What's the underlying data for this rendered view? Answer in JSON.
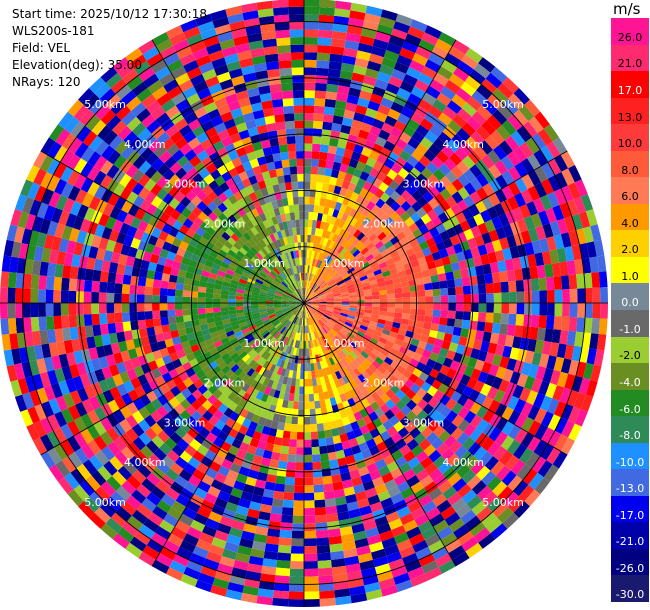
{
  "header": {
    "start_time_label": "Start time",
    "start_time": "2025/10/12 17:30:18",
    "instrument": "WLS200s-181",
    "field_label": "Field",
    "field": "VEL",
    "elevation_label": "Elevation(deg)",
    "elevation": "35.00",
    "nrays_label": "NRays",
    "nrays": "120"
  },
  "chart_data": {
    "type": "heatmap",
    "projection": "polar-ppi",
    "field": "VEL",
    "units": "m/s",
    "nrays": 120,
    "elevation_deg": 35.0,
    "range_rings_km": [
      1.0,
      2.0,
      3.0,
      4.0,
      5.0
    ],
    "range_labels": [
      "1.00km",
      "2.00km",
      "3.00km",
      "4.00km",
      "5.00km"
    ],
    "max_range_km": 5.4,
    "radial_spokes_deg": [
      0,
      30,
      60,
      90,
      120,
      150,
      180,
      210,
      240,
      270,
      300,
      330
    ],
    "signal_pattern": "coherent near range (inside ~2.3 km): negative (blue/green) to the west, positive (orange/red) to the east; noisy values beyond",
    "colorbar": {
      "unit_label": "m/s",
      "tick_labels": [
        "26.0",
        "21.0",
        "17.0",
        "13.0",
        "10.0",
        "8.0",
        "6.0",
        "4.0",
        "2.0",
        "1.0",
        "0.0",
        "-1.0",
        "-2.0",
        "-4.0",
        "-6.0",
        "-8.0",
        "-10.0",
        "-13.0",
        "-17.0",
        "-21.0",
        "-26.0",
        "-30.0"
      ],
      "colors": [
        "#ff1493",
        "#ff2a6f",
        "#ff0000",
        "#ff2020",
        "#ff3a3a",
        "#ff5a3a",
        "#ff7a55",
        "#ff9900",
        "#ffd000",
        "#ffff00",
        "#778899",
        "#696969",
        "#9acd32",
        "#6b8e23",
        "#228b22",
        "#2e8b57",
        "#1e90ff",
        "#4169e1",
        "#0000ee",
        "#0000aa",
        "#000080",
        "#191970"
      ]
    }
  }
}
